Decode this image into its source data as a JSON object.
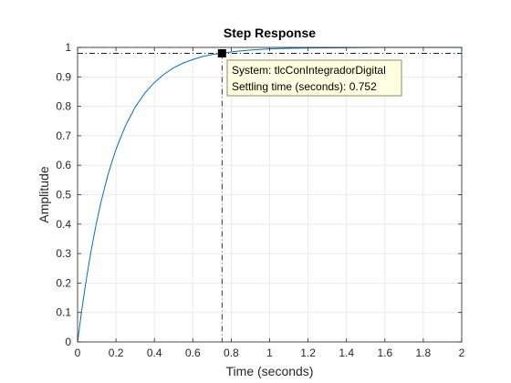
{
  "chart_data": {
    "type": "line",
    "title": "Step Response",
    "xlabel": "Time (seconds)",
    "ylabel": "Amplitude",
    "xlim": [
      0,
      2
    ],
    "ylim": [
      0,
      1
    ],
    "grid": true,
    "x_ticks": [
      0,
      0.2,
      0.4,
      0.6,
      0.8,
      1,
      1.2,
      1.4,
      1.6,
      1.8,
      2
    ],
    "x_tick_labels": [
      "0",
      "0.2",
      "0.4",
      "0.6",
      "0.8",
      "1",
      "1.2",
      "1.4",
      "1.6",
      "1.8",
      "2"
    ],
    "y_ticks": [
      0,
      0.1,
      0.2,
      0.3,
      0.4,
      0.5,
      0.6,
      0.7,
      0.8,
      0.9,
      1
    ],
    "y_tick_labels": [
      "0",
      "0.1",
      "0.2",
      "0.3",
      "0.4",
      "0.5",
      "0.6",
      "0.7",
      "0.8",
      "0.9",
      "1"
    ],
    "series": [
      {
        "color": "#0072bd",
        "x": [
          0,
          0.02,
          0.04,
          0.06,
          0.08,
          0.1,
          0.12,
          0.14,
          0.16,
          0.18,
          0.2,
          0.25,
          0.3,
          0.35,
          0.4,
          0.45,
          0.5,
          0.55,
          0.6,
          0.65,
          0.7,
          0.752,
          0.8,
          0.9,
          1.0,
          1.1,
          1.2,
          1.4,
          1.6,
          1.8,
          2.0
        ],
        "y": [
          0,
          0.099,
          0.189,
          0.27,
          0.343,
          0.409,
          0.469,
          0.522,
          0.571,
          0.614,
          0.654,
          0.735,
          0.797,
          0.845,
          0.881,
          0.909,
          0.931,
          0.947,
          0.959,
          0.969,
          0.976,
          0.98,
          0.985,
          0.991,
          0.995,
          0.997,
          0.998,
          0.999,
          1.0,
          1.0,
          1.0
        ]
      }
    ],
    "settling_marker": {
      "x": 0.752,
      "y": 0.98,
      "line_color": "#000000",
      "dash": "dash-dot"
    },
    "steady_state_line": {
      "y": 1.0,
      "style": "dotted"
    },
    "annotation": {
      "lines": [
        "System: tlcConIntegradorDigital",
        "Settling time (seconds): 0.752"
      ],
      "background": "#ffffe1",
      "border": "#8c8c5a"
    }
  }
}
